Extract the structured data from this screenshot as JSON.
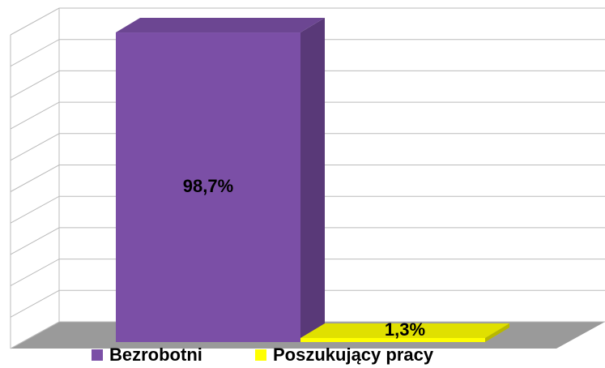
{
  "chart_data": {
    "type": "bar",
    "series": [
      {
        "name": "Bezrobotni",
        "color": "#7b4fa6",
        "values": [
          98.7
        ],
        "value_labels": [
          "98,7%"
        ]
      },
      {
        "name": "Poszukujący pracy",
        "color": "#ffff00",
        "values": [
          1.3
        ],
        "value_labels": [
          "1,3%"
        ]
      }
    ],
    "ylim": [
      0,
      100
    ],
    "yticks": [
      0,
      10,
      20,
      30,
      40,
      50,
      60,
      70,
      80,
      90,
      100
    ],
    "grid": true,
    "legend": "bottom"
  }
}
